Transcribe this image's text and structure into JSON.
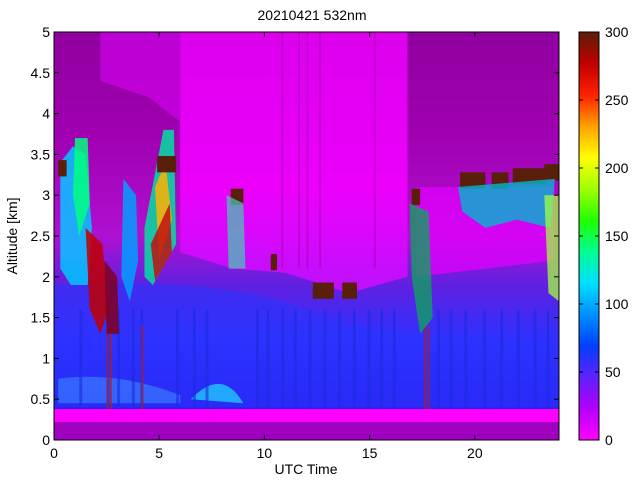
{
  "chart_data": {
    "type": "heatmap",
    "title": "20210421 532nm",
    "xlabel": "UTC Time",
    "ylabel": "Altitude [km]",
    "xlim": [
      0,
      24
    ],
    "ylim": [
      0,
      5
    ],
    "x_ticks": [
      0,
      5,
      10,
      15,
      20
    ],
    "x_tick_labels": [
      "0",
      "5",
      "10",
      "15",
      "20"
    ],
    "y_ticks": [
      0,
      0.5,
      1,
      1.5,
      2,
      2.5,
      3,
      3.5,
      4,
      4.5,
      5
    ],
    "y_tick_labels": [
      "0",
      "0.5",
      "1",
      "1.5",
      "2",
      "2.5",
      "3",
      "3.5",
      "4",
      "4.5",
      "5"
    ],
    "colorbar": {
      "range": [
        0,
        300
      ],
      "ticks": [
        0,
        50,
        100,
        150,
        200,
        250,
        300
      ],
      "tick_labels": [
        "0",
        "50",
        "100",
        "150",
        "200",
        "250",
        "300"
      ],
      "colormap": [
        "#ff00ff",
        "#b300ff",
        "#6020ff",
        "#0040ff",
        "#0090ff",
        "#00e0ff",
        "#00ff90",
        "#20ff00",
        "#a0ff00",
        "#ffff00",
        "#ffa000",
        "#ff2000",
        "#c00000",
        "#5a1f0a"
      ]
    },
    "colors": {
      "background_purple": "#9a00a8",
      "surface_band": "#ff00ff",
      "cloud_top": "#5a1f0a"
    },
    "features": {
      "cloud_layer_top_altitude_km": 3.2,
      "surface_signal_altitude_km": 0.3,
      "notable_cloud_periods_utc": [
        [
          0,
          6
        ],
        [
          8,
          9.2
        ],
        [
          10.3,
          11
        ],
        [
          12,
          14.5
        ],
        [
          17,
          24
        ]
      ]
    }
  }
}
